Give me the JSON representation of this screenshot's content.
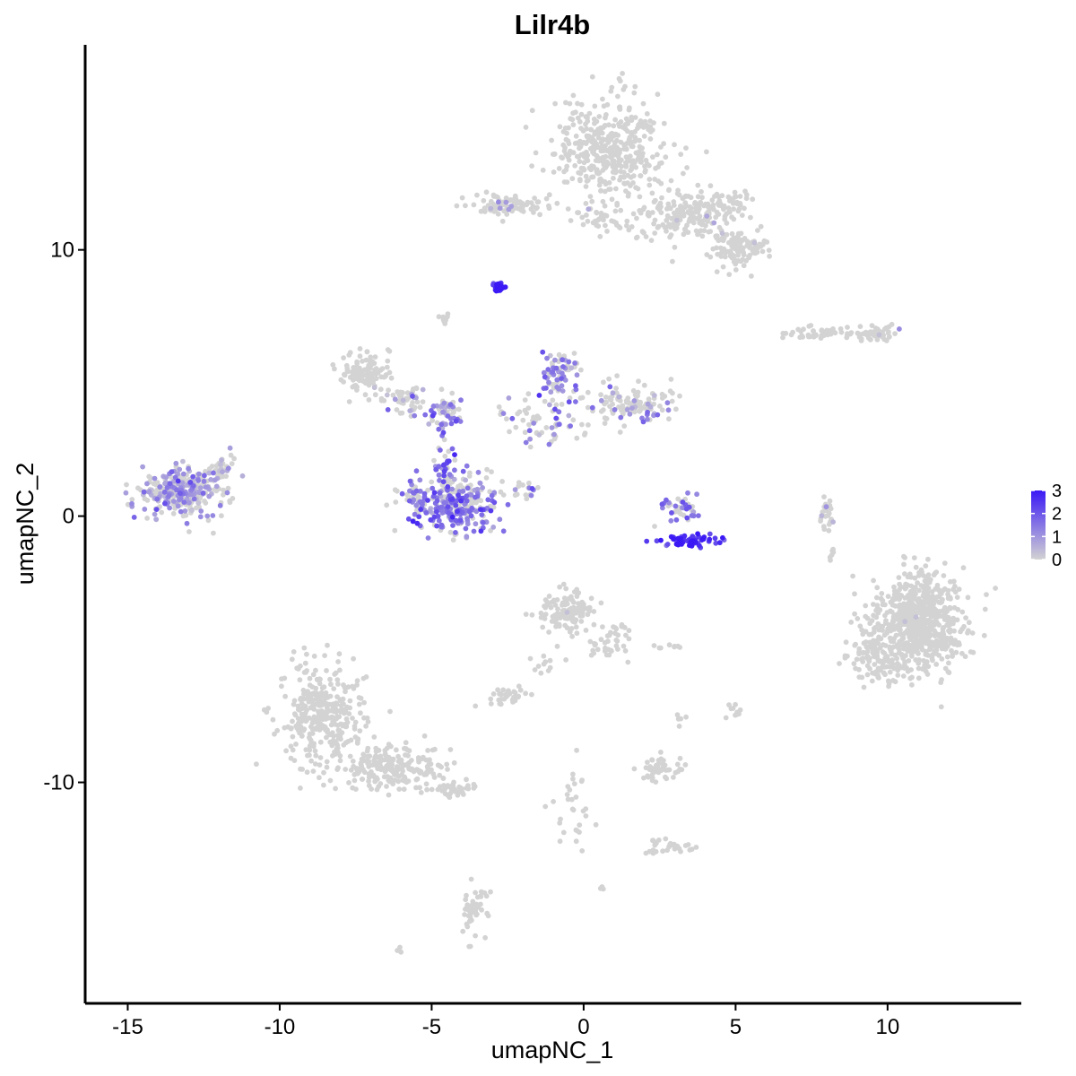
{
  "chart_data": {
    "type": "scatter",
    "title": "Lilr4b",
    "xlabel": "umapNC_1",
    "ylabel": "umapNC_2",
    "xlim": [
      -16.4,
      14.4
    ],
    "ylim": [
      -18.3,
      17.7
    ],
    "xticks": [
      -15,
      -10,
      -5,
      0,
      5,
      10
    ],
    "xtick_labels": [
      "-15",
      "-10",
      "-5",
      "0",
      "5",
      "10"
    ],
    "yticks": [
      -10,
      0,
      10
    ],
    "ytick_labels": [
      "-10",
      "0",
      "10"
    ],
    "grid": false,
    "legend": {
      "placement": "right",
      "type": "colorbar",
      "min": 0,
      "max": 3,
      "ticks": [
        0,
        1,
        2,
        3
      ],
      "labels": [
        "0",
        "1",
        "2",
        "3"
      ],
      "low_color": "#d3d3d3",
      "high_color": "#3a19f5"
    },
    "background_color": "#ffffff",
    "clusters": [
      {
        "cx": 0.9,
        "cy": 13.8,
        "sx": 1.2,
        "sy": 1.3,
        "n": 420,
        "expr": 0.0,
        "frac": 0.01
      },
      {
        "cx": 3.3,
        "cy": 11.3,
        "sx": 1.0,
        "sy": 0.6,
        "n": 180,
        "expr": 0.0,
        "frac": 0.02
      },
      {
        "cx": 5.1,
        "cy": 10.0,
        "sx": 0.6,
        "sy": 0.5,
        "n": 120,
        "expr": 0.0,
        "frac": 0.02
      },
      {
        "cx": 4.8,
        "cy": 11.7,
        "sx": 0.6,
        "sy": 0.3,
        "n": 50,
        "expr": 0.0,
        "frac": 0.0
      },
      {
        "cx": -2.4,
        "cy": 11.7,
        "sx": 0.9,
        "sy": 0.3,
        "n": 90,
        "expr": 0.5,
        "frac": 0.08
      },
      {
        "cx": 0.5,
        "cy": 11.1,
        "sx": 0.8,
        "sy": 0.3,
        "n": 30,
        "expr": 0.0,
        "frac": 0.0
      },
      {
        "cx": -2.8,
        "cy": 8.6,
        "sx": 0.15,
        "sy": 0.12,
        "n": 30,
        "expr": 3.0,
        "frac": 1.0
      },
      {
        "cx": -4.6,
        "cy": 7.4,
        "sx": 0.1,
        "sy": 0.2,
        "n": 8,
        "expr": 0.0,
        "frac": 0.0
      },
      {
        "cx": 9.5,
        "cy": 6.9,
        "sx": 0.6,
        "sy": 0.2,
        "n": 60,
        "expr": 0.0,
        "frac": 0.02
      },
      {
        "cx": 7.6,
        "cy": 6.9,
        "sx": 0.6,
        "sy": 0.15,
        "n": 40,
        "expr": 0.0,
        "frac": 0.0
      },
      {
        "cx": -7.2,
        "cy": 5.3,
        "sx": 0.6,
        "sy": 0.5,
        "n": 110,
        "expr": 0.0,
        "frac": 0.0
      },
      {
        "cx": -5.8,
        "cy": 4.4,
        "sx": 0.5,
        "sy": 0.4,
        "n": 50,
        "expr": 0.8,
        "frac": 0.25
      },
      {
        "cx": -4.5,
        "cy": 3.9,
        "sx": 0.4,
        "sy": 0.4,
        "n": 50,
        "expr": 1.3,
        "frac": 0.5
      },
      {
        "cx": -0.8,
        "cy": 5.3,
        "sx": 0.4,
        "sy": 0.6,
        "n": 70,
        "expr": 1.3,
        "frac": 0.45
      },
      {
        "cx": 1.5,
        "cy": 4.2,
        "sx": 1.0,
        "sy": 0.5,
        "n": 120,
        "expr": 1.0,
        "frac": 0.2
      },
      {
        "cx": -1.2,
        "cy": 3.6,
        "sx": 1.0,
        "sy": 0.6,
        "n": 70,
        "expr": 1.2,
        "frac": 0.3
      },
      {
        "cx": -4.2,
        "cy": 0.5,
        "sx": 1.0,
        "sy": 0.8,
        "n": 300,
        "expr": 1.5,
        "frac": 0.55
      },
      {
        "cx": -4.6,
        "cy": 1.9,
        "sx": 0.2,
        "sy": 0.7,
        "n": 30,
        "expr": 1.8,
        "frac": 0.6
      },
      {
        "cx": -5.8,
        "cy": 0.8,
        "sx": 0.3,
        "sy": 0.3,
        "n": 20,
        "expr": 1.5,
        "frac": 0.7
      },
      {
        "cx": -2.0,
        "cy": 1.0,
        "sx": 0.4,
        "sy": 0.2,
        "n": 15,
        "expr": 1.2,
        "frac": 0.4
      },
      {
        "cx": 3.4,
        "cy": -0.9,
        "sx": 0.7,
        "sy": 0.15,
        "n": 60,
        "expr": 2.7,
        "frac": 0.95
      },
      {
        "cx": 3.2,
        "cy": 0.2,
        "sx": 0.5,
        "sy": 0.5,
        "n": 40,
        "expr": 1.5,
        "frac": 0.6
      },
      {
        "cx": -13.3,
        "cy": 0.9,
        "sx": 0.9,
        "sy": 0.6,
        "n": 280,
        "expr": 1.0,
        "frac": 0.55
      },
      {
        "cx": -11.9,
        "cy": 1.6,
        "sx": 0.4,
        "sy": 0.5,
        "n": 40,
        "expr": 0.5,
        "frac": 0.2
      },
      {
        "cx": 8.0,
        "cy": 0.2,
        "sx": 0.15,
        "sy": 0.6,
        "n": 25,
        "expr": 0.5,
        "frac": 0.1
      },
      {
        "cx": 11.0,
        "cy": -4.0,
        "sx": 1.0,
        "sy": 1.2,
        "n": 700,
        "expr": 0.0,
        "frac": 0.005
      },
      {
        "cx": 9.6,
        "cy": -5.3,
        "sx": 0.7,
        "sy": 0.6,
        "n": 100,
        "expr": 0.0,
        "frac": 0.0
      },
      {
        "cx": -0.5,
        "cy": -3.6,
        "sx": 0.6,
        "sy": 0.5,
        "n": 120,
        "expr": 0.0,
        "frac": 0.02
      },
      {
        "cx": 0.9,
        "cy": -4.6,
        "sx": 0.5,
        "sy": 0.5,
        "n": 40,
        "expr": 0.0,
        "frac": 0.0
      },
      {
        "cx": -8.6,
        "cy": -7.5,
        "sx": 0.9,
        "sy": 1.3,
        "n": 350,
        "expr": 0.0,
        "frac": 0.0
      },
      {
        "cx": -6.3,
        "cy": -9.4,
        "sx": 1.1,
        "sy": 0.6,
        "n": 200,
        "expr": 0.0,
        "frac": 0.0
      },
      {
        "cx": -4.3,
        "cy": -10.2,
        "sx": 0.6,
        "sy": 0.2,
        "n": 40,
        "expr": 0.0,
        "frac": 0.0
      },
      {
        "cx": -2.5,
        "cy": -6.8,
        "sx": 0.4,
        "sy": 0.2,
        "n": 35,
        "expr": 0.0,
        "frac": 0.0
      },
      {
        "cx": -1.2,
        "cy": -5.5,
        "sx": 0.3,
        "sy": 0.5,
        "n": 12,
        "expr": 0.0,
        "frac": 0.0
      },
      {
        "cx": 2.5,
        "cy": -9.5,
        "sx": 0.4,
        "sy": 0.3,
        "n": 50,
        "expr": 0.0,
        "frac": 0.0
      },
      {
        "cx": 2.8,
        "cy": -12.4,
        "sx": 0.5,
        "sy": 0.2,
        "n": 30,
        "expr": 0.0,
        "frac": 0.0
      },
      {
        "cx": -0.3,
        "cy": -11.0,
        "sx": 0.5,
        "sy": 1.0,
        "n": 30,
        "expr": 0.0,
        "frac": 0.0
      },
      {
        "cx": -3.6,
        "cy": -14.8,
        "sx": 0.3,
        "sy": 0.6,
        "n": 45,
        "expr": 0.0,
        "frac": 0.0
      },
      {
        "cx": 5.0,
        "cy": -7.3,
        "sx": 0.15,
        "sy": 0.2,
        "n": 10,
        "expr": 0.0,
        "frac": 0.0
      },
      {
        "cx": 2.8,
        "cy": -4.9,
        "sx": 0.3,
        "sy": 0.1,
        "n": 8,
        "expr": 0.0,
        "frac": 0.0
      },
      {
        "cx": 3.2,
        "cy": -7.6,
        "sx": 0.1,
        "sy": 0.2,
        "n": 5,
        "expr": 0.0,
        "frac": 0.0
      },
      {
        "cx": 8.2,
        "cy": -1.5,
        "sx": 0.1,
        "sy": 0.2,
        "n": 6,
        "expr": 0.0,
        "frac": 0.0
      },
      {
        "cx": -6.1,
        "cy": -16.3,
        "sx": 0.1,
        "sy": 0.1,
        "n": 4,
        "expr": 0.0,
        "frac": 0.0
      },
      {
        "cx": 0.6,
        "cy": -14.0,
        "sx": 0.1,
        "sy": 0.1,
        "n": 3,
        "expr": 0.0,
        "frac": 0.0
      }
    ]
  }
}
